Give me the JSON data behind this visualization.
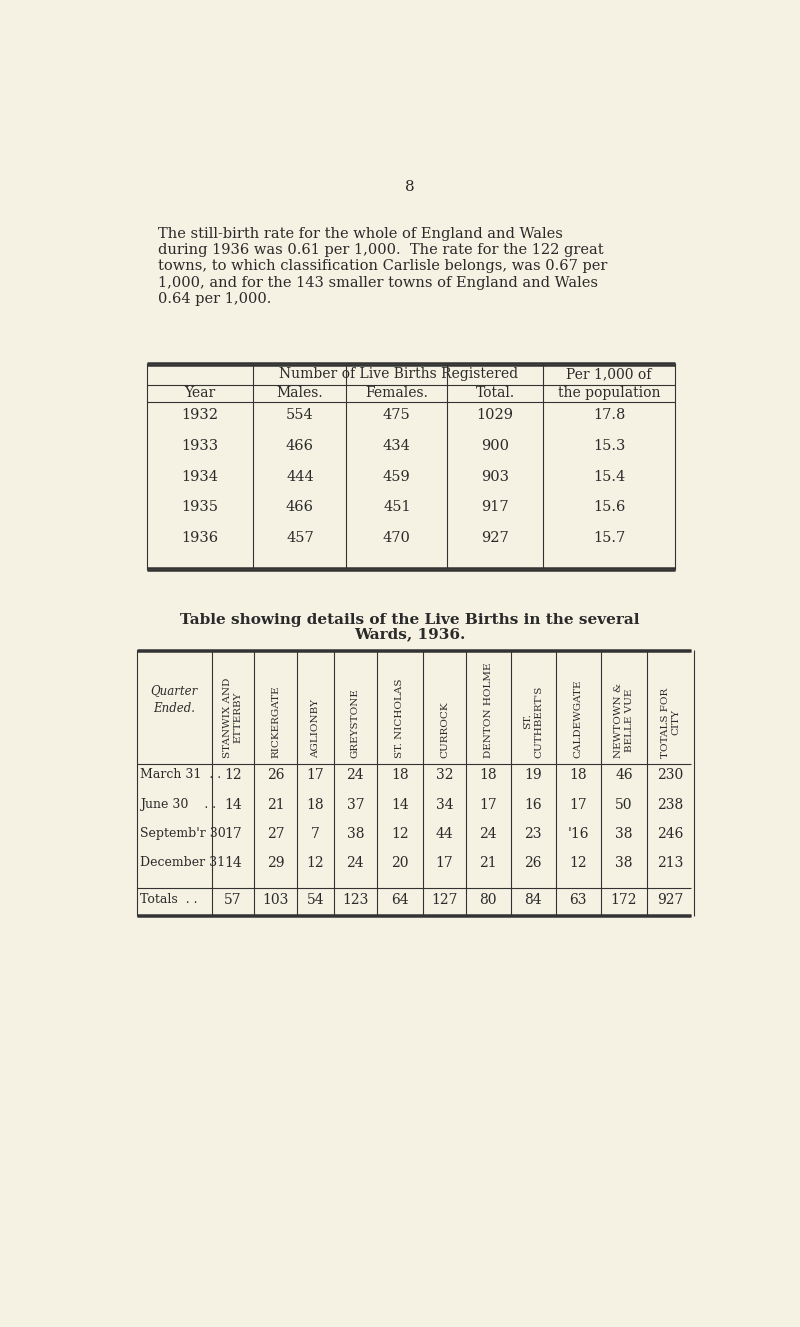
{
  "page_number": "8",
  "background_color": "#f5f2e3",
  "intro_lines": [
    "The still-birth rate for the whole of England and Wales",
    "during 1936 was 0.61 per 1,000.  The rate for the 122 great",
    "towns, to which classification Carlisle belongs, was 0.67 per",
    "1,000, and for the 143 smaller towns of England and Wales",
    "0.64 per 1,000."
  ],
  "table1": {
    "rows": [
      [
        "1932",
        "554",
        "475",
        "1029",
        "17.8"
      ],
      [
        "1933",
        "466",
        "434",
        "900",
        "15.3"
      ],
      [
        "1934",
        "444",
        "459",
        "903",
        "15.4"
      ],
      [
        "1935",
        "466",
        "451",
        "917",
        "15.6"
      ],
      [
        "1936",
        "457",
        "470",
        "927",
        "15.7"
      ]
    ]
  },
  "table2": {
    "col_headers_rotated": [
      "STANWIX AND\nETTERBY",
      "RICKERGATE",
      "AGLIONBY",
      "GREYSTONE",
      "ST. NICHOLAS",
      "CURROCK",
      "DENTON HOLME",
      "ST.\nCUTHBERT'S",
      "CALDEWGATE",
      "NEWTOWN &\nBELLE VUE",
      "TOTALS FOR\nCITY"
    ],
    "rows": [
      [
        "March 31  . .",
        "12",
        "26",
        "17",
        "24",
        "18",
        "32",
        "18",
        "19",
        "18",
        "46",
        "230"
      ],
      [
        "June 30    . .",
        "14",
        "21",
        "18",
        "37",
        "14",
        "34",
        "17",
        "16",
        "17",
        "50",
        "238"
      ],
      [
        "Septemb'r 30",
        "17",
        "27",
        "7",
        "38",
        "12",
        "44",
        "24",
        "23",
        "'16",
        "38",
        "246"
      ],
      [
        "December 31",
        "14",
        "29",
        "12",
        "24",
        "20",
        "17",
        "21",
        "26",
        "12",
        "38",
        "213"
      ]
    ],
    "totals_row": [
      "Totals  . .",
      "57",
      "103",
      "54",
      "123",
      "64",
      "127",
      "80",
      "84",
      "63",
      "172",
      "927"
    ]
  }
}
